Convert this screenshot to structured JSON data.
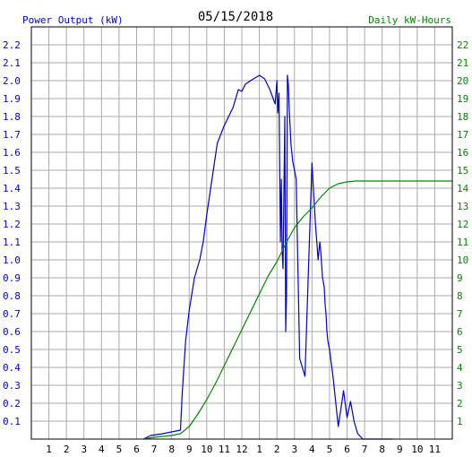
{
  "chart_data": {
    "type": "line",
    "title": "05/15/2018",
    "left_axis_label": "Power Output (kW)",
    "right_axis_label": "Daily kW-Hours",
    "x_tick_labels": [
      "1",
      "2",
      "3",
      "4",
      "5",
      "6",
      "7",
      "8",
      "9",
      "10",
      "11",
      "12",
      "1",
      "2",
      "3",
      "4",
      "5",
      "6",
      "7",
      "8",
      "9",
      "10",
      "11"
    ],
    "y_left_ticks": [
      "0.1",
      "0.2",
      "0.3",
      "0.4",
      "0.5",
      "0.6",
      "0.7",
      "0.8",
      "0.9",
      "1.0",
      "1.1",
      "1.2",
      "1.3",
      "1.4",
      "1.5",
      "1.6",
      "1.7",
      "1.8",
      "1.9",
      "2.0",
      "2.1",
      "2.2"
    ],
    "y_right_ticks": [
      "1",
      "2",
      "3",
      "4",
      "5",
      "6",
      "7",
      "8",
      "9",
      "10",
      "11",
      "12",
      "13",
      "14",
      "15",
      "16",
      "17",
      "18",
      "19",
      "20",
      "21",
      "22"
    ],
    "ylim_left": [
      0,
      2.3
    ],
    "ylim_right": [
      0,
      23
    ],
    "xlim_hours": [
      0,
      24
    ],
    "grid": true,
    "colors": {
      "power": "#0000cc",
      "energy": "#008800",
      "grid": "#aaaaaa",
      "frame": "#000000"
    },
    "series": [
      {
        "name": "Power Output (kW)",
        "axis": "left",
        "x": [
          6.4,
          6.8,
          7.5,
          8.0,
          8.5,
          8.6,
          8.8,
          9.0,
          9.3,
          9.6,
          9.8,
          10.0,
          10.3,
          10.6,
          11.0,
          11.5,
          11.8,
          12.0,
          12.2,
          12.5,
          13.0,
          13.3,
          13.6,
          13.9,
          14.0,
          14.05,
          14.12,
          14.2,
          14.25,
          14.3,
          14.35,
          14.45,
          14.5,
          14.55,
          14.6,
          14.65,
          14.7,
          14.8,
          14.9,
          15.0,
          15.1,
          15.3,
          15.6,
          16.0,
          16.2,
          16.35,
          16.45,
          16.5,
          16.6,
          16.7,
          16.75,
          16.8,
          16.85,
          16.9,
          17.0,
          17.2,
          17.5,
          17.8,
          18.0,
          18.2,
          18.4,
          18.6,
          18.8,
          18.9,
          19.0,
          19.1,
          19.2,
          19.3,
          19.4,
          19.5,
          19.6,
          19.8,
          20.0,
          20.3,
          20.6
        ],
        "values": [
          0.0,
          0.02,
          0.03,
          0.04,
          0.05,
          0.25,
          0.55,
          0.72,
          0.9,
          1.0,
          1.1,
          1.25,
          1.45,
          1.65,
          1.75,
          1.85,
          1.95,
          1.94,
          1.98,
          2.0,
          2.03,
          2.01,
          1.95,
          1.87,
          2.0,
          1.82,
          1.93,
          1.1,
          1.45,
          1.05,
          0.95,
          1.8,
          0.6,
          0.8,
          2.03,
          1.98,
          1.85,
          1.65,
          1.55,
          1.5,
          1.45,
          0.45,
          0.35,
          1.54,
          1.2,
          1.0,
          1.1,
          1.05,
          0.9,
          0.85,
          0.75,
          0.7,
          0.6,
          0.55,
          0.5,
          0.35,
          0.07,
          0.27,
          0.12,
          0.21,
          0.1,
          0.03,
          0.01,
          0.0,
          0.0,
          0.0,
          0.0,
          0.0,
          0.0,
          0.0,
          0.0,
          0.0,
          0.0,
          0.0,
          0.0
        ]
      },
      {
        "name": "Daily kW-Hours",
        "axis": "right",
        "x": [
          6.4,
          7.0,
          8.0,
          8.5,
          9.0,
          9.5,
          10.0,
          10.5,
          11.0,
          11.5,
          12.0,
          12.5,
          13.0,
          13.5,
          14.0,
          14.5,
          15.0,
          15.5,
          16.0,
          16.5,
          17.0,
          17.5,
          18.0,
          18.5,
          19.0,
          19.5,
          20.0,
          21.0,
          22.0,
          23.0,
          24.0
        ],
        "values": [
          0.0,
          0.1,
          0.2,
          0.3,
          0.7,
          1.4,
          2.2,
          3.1,
          4.1,
          5.1,
          6.1,
          7.1,
          8.1,
          9.1,
          9.9,
          10.9,
          11.8,
          12.4,
          12.9,
          13.5,
          14.0,
          14.25,
          14.35,
          14.4,
          14.4,
          14.4,
          14.4,
          14.4,
          14.4,
          14.4,
          14.4
        ]
      }
    ]
  }
}
